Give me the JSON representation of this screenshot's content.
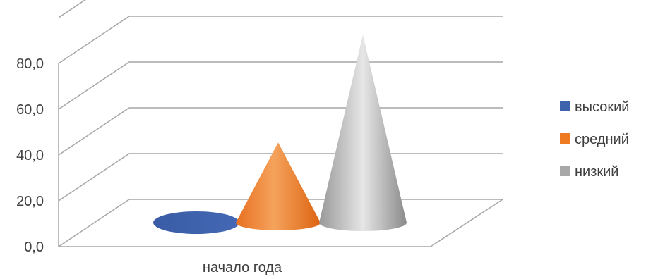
{
  "chart_data": {
    "type": "bar",
    "shape": "cone-3d",
    "categories": [
      "начало года"
    ],
    "series": [
      {
        "name": "высокий",
        "values": [
          0
        ],
        "color": "#3f62ad"
      },
      {
        "name": "средний",
        "values": [
          35
        ],
        "color": "#ee7b22"
      },
      {
        "name": "низкий",
        "values": [
          82
        ],
        "color": "#a8a8a8"
      }
    ],
    "yticks": [
      "0,0",
      "20,0",
      "40,0",
      "60,0",
      "80,0"
    ],
    "ylim": [
      0,
      100
    ],
    "grid": true,
    "legend": "right"
  }
}
